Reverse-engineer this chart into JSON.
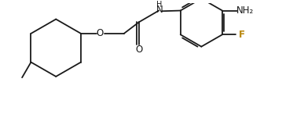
{
  "background_color": "#ffffff",
  "line_color": "#1a1a1a",
  "o_color": "#1a1a1a",
  "f_color": "#b8860b",
  "nh2_color": "#1a1a1a",
  "bond_lw": 1.3,
  "label_fontsize": 8.5,
  "figsize": [
    3.73,
    1.51
  ],
  "dpi": 100,
  "xlim": [
    0,
    10.5
  ],
  "ylim": [
    0,
    4.2
  ]
}
